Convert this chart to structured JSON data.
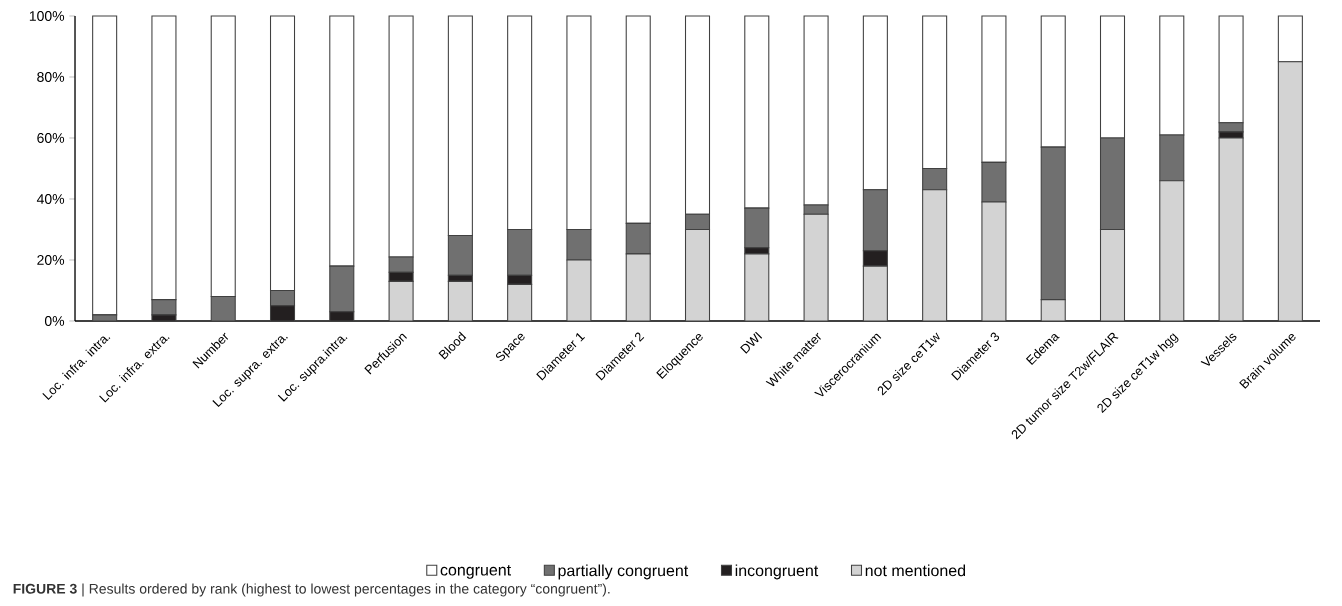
{
  "chart_data": {
    "type": "bar",
    "stacked": true,
    "categories": [
      "Loc. infra. intra.",
      "Loc. infra. extra.",
      "Number",
      "Loc. supra. extra.",
      "Loc. supra.intra.",
      "Perfusion",
      "Blood",
      "Space",
      "Diameter 1",
      "Diameter 2",
      "Eloquence",
      "DWI",
      "White matter",
      "Viscerocranium",
      "2D size ceT1w",
      "Diameter 3",
      "Edema",
      "2D tumor size T2w/FLAIR",
      "2D size ceT1w hgg",
      "Vessels",
      "Brain volume"
    ],
    "series": [
      {
        "name": "not mentioned",
        "color": "#d3d3d3",
        "values": [
          0,
          0,
          0,
          0,
          0,
          13,
          13,
          12,
          20,
          22,
          30,
          22,
          35,
          18,
          43,
          39,
          7,
          30,
          46,
          60,
          85
        ]
      },
      {
        "name": "incongruent",
        "color": "#231f20",
        "values": [
          0,
          2,
          0,
          5,
          3,
          3,
          2,
          3,
          0,
          0,
          0,
          2,
          0,
          5,
          0,
          0,
          0,
          0,
          0,
          2,
          0
        ]
      },
      {
        "name": "partially congruent",
        "color": "#707070",
        "values": [
          2,
          5,
          8,
          5,
          15,
          5,
          13,
          15,
          10,
          10,
          5,
          13,
          3,
          20,
          7,
          13,
          50,
          30,
          15,
          3,
          0
        ]
      },
      {
        "name": "congruent",
        "color": "#ffffff",
        "values": [
          98,
          93,
          92,
          90,
          82,
          79,
          72,
          70,
          70,
          68,
          65,
          63,
          62,
          57,
          50,
          48,
          43,
          40,
          39,
          35,
          15
        ]
      }
    ],
    "ylim": [
      0,
      100
    ],
    "yticks": [
      {
        "value": 0,
        "label": "0%"
      },
      {
        "value": 20,
        "label": "20%"
      },
      {
        "value": 40,
        "label": "40%"
      },
      {
        "value": 60,
        "label": "60%"
      },
      {
        "value": 80,
        "label": "80%"
      },
      {
        "value": 100,
        "label": "100%"
      }
    ],
    "grid": false,
    "legend": "bottom",
    "annotations": [
      "**FIGURE 3** | Results ordered by rank (highest to lowest percentages in the category “congruent”)."
    ]
  }
}
